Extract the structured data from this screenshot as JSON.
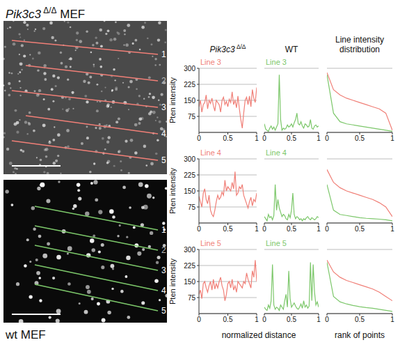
{
  "images": {
    "top": {
      "title": "Pik3c3 Δ/Δ MEF",
      "line_color": "#f07f77",
      "line_labels": [
        "1",
        "2",
        "3",
        "4",
        "5"
      ]
    },
    "bottom": {
      "title": "wt MEF",
      "line_color": "#7cc76a",
      "line_labels": [
        "1",
        "2",
        "3",
        "4",
        "5"
      ]
    }
  },
  "column_titles": [
    "Pik3c3 Δ/Δ",
    "WT",
    "Line intensity distribution"
  ],
  "xlabels": [
    "normalized distance",
    "rank of points"
  ],
  "chart_data": [
    {
      "type": "line",
      "title": "Line 3",
      "ylabel": "Pten intensity",
      "xlim": [
        0,
        1
      ],
      "xticks": [
        0,
        0.5,
        1
      ],
      "ylim": [
        0,
        300
      ],
      "yticks": [
        75,
        150,
        225,
        300
      ],
      "grid": true,
      "x": [
        0,
        0.025,
        0.05,
        0.075,
        0.1,
        0.125,
        0.15,
        0.175,
        0.2,
        0.225,
        0.25,
        0.275,
        0.3,
        0.325,
        0.35,
        0.375,
        0.4,
        0.425,
        0.45,
        0.475,
        0.5,
        0.525,
        0.55,
        0.575,
        0.6,
        0.625,
        0.65,
        0.675,
        0.7,
        0.725,
        0.75,
        0.775,
        0.8,
        0.825,
        0.85,
        0.875,
        0.9,
        0.925,
        0.95,
        0.975,
        1
      ],
      "series": [
        {
          "color": "#f07f77",
          "values": [
            120,
            150,
            95,
            130,
            140,
            175,
            110,
            150,
            135,
            160,
            125,
            100,
            150,
            140,
            130,
            95,
            150,
            165,
            130,
            145,
            120,
            155,
            140,
            190,
            130,
            150,
            115,
            170,
            110,
            60,
            20,
            90,
            150,
            165,
            130,
            170,
            120,
            200,
            160,
            140,
            210
          ]
        }
      ]
    },
    {
      "type": "line",
      "title": "Line 3",
      "xlim": [
        0,
        1
      ],
      "xticks": [
        0,
        0.5,
        1
      ],
      "ylim": [
        0,
        300
      ],
      "yticks": [
        75,
        150,
        225,
        300
      ],
      "grid": true,
      "tick_labels": "x",
      "x": [
        0,
        0.025,
        0.05,
        0.075,
        0.1,
        0.125,
        0.15,
        0.175,
        0.2,
        0.225,
        0.25,
        0.275,
        0.3,
        0.325,
        0.35,
        0.375,
        0.4,
        0.425,
        0.45,
        0.475,
        0.5,
        0.525,
        0.55,
        0.575,
        0.6,
        0.625,
        0.65,
        0.675,
        0.7,
        0.725,
        0.75,
        0.775,
        0.8,
        0.825,
        0.85,
        0.875,
        0.9,
        0.925,
        0.95,
        0.975,
        1
      ],
      "series": [
        {
          "color": "#7cc76a",
          "values": [
            40,
            15,
            10,
            5,
            20,
            30,
            15,
            25,
            10,
            25,
            40,
            270,
            60,
            10,
            20,
            15,
            20,
            35,
            25,
            30,
            40,
            25,
            45,
            60,
            90,
            40,
            35,
            50,
            30,
            20,
            40,
            35,
            25,
            30,
            60,
            20,
            15,
            30,
            35,
            25,
            30
          ]
        }
      ]
    },
    {
      "type": "line",
      "xlim": [
        0,
        1
      ],
      "xticks": [
        0,
        0.5,
        1
      ],
      "ylim": [
        0,
        300
      ],
      "yticks": [
        75,
        150,
        225,
        300
      ],
      "grid": true,
      "tick_labels": "x",
      "x": [
        0,
        0.1,
        0.2,
        0.3,
        0.4,
        0.5,
        0.6,
        0.7,
        0.8,
        0.9,
        1
      ],
      "series": [
        {
          "color": "#f07f77",
          "values": [
            280,
            200,
            175,
            160,
            150,
            140,
            130,
            120,
            110,
            90,
            10
          ]
        },
        {
          "color": "#7cc76a",
          "values": [
            270,
            90,
            50,
            40,
            35,
            30,
            25,
            20,
            15,
            10,
            5
          ]
        }
      ]
    },
    {
      "type": "line",
      "title": "Line 4",
      "ylabel": "Pten intensity",
      "xlim": [
        0,
        1
      ],
      "xticks": [
        0,
        0.5,
        1
      ],
      "ylim": [
        0,
        300
      ],
      "yticks": [
        75,
        150,
        225,
        300
      ],
      "grid": true,
      "x": [
        0,
        0.025,
        0.05,
        0.075,
        0.1,
        0.125,
        0.15,
        0.175,
        0.2,
        0.225,
        0.25,
        0.275,
        0.3,
        0.325,
        0.35,
        0.375,
        0.4,
        0.425,
        0.45,
        0.475,
        0.5,
        0.525,
        0.55,
        0.575,
        0.6,
        0.625,
        0.65,
        0.675,
        0.7,
        0.725,
        0.75,
        0.775,
        0.8,
        0.825,
        0.85,
        0.875,
        0.9,
        0.925,
        0.95,
        0.975,
        1
      ],
      "series": [
        {
          "color": "#f07f77",
          "values": [
            125,
            100,
            75,
            140,
            160,
            110,
            90,
            130,
            60,
            40,
            30,
            60,
            100,
            130,
            110,
            120,
            145,
            130,
            200,
            150,
            170,
            160,
            150,
            190,
            160,
            240,
            130,
            140,
            170,
            160,
            180,
            130,
            110,
            90,
            70,
            100,
            120,
            80,
            110,
            100,
            140
          ]
        }
      ]
    },
    {
      "type": "line",
      "title": "Line 4",
      "xlim": [
        0,
        1
      ],
      "xticks": [
        0,
        0.5,
        1
      ],
      "ylim": [
        0,
        300
      ],
      "yticks": [
        75,
        150,
        225,
        300
      ],
      "grid": true,
      "tick_labels": "x",
      "x": [
        0,
        0.025,
        0.05,
        0.075,
        0.1,
        0.125,
        0.15,
        0.175,
        0.2,
        0.225,
        0.25,
        0.275,
        0.3,
        0.325,
        0.35,
        0.375,
        0.4,
        0.425,
        0.45,
        0.475,
        0.5,
        0.525,
        0.55,
        0.575,
        0.6,
        0.625,
        0.65,
        0.675,
        0.7,
        0.725,
        0.75,
        0.775,
        0.8,
        0.825,
        0.85,
        0.875,
        0.9,
        0.925,
        0.95,
        0.975,
        1
      ],
      "series": [
        {
          "color": "#7cc76a",
          "values": [
            30,
            20,
            10,
            40,
            25,
            30,
            15,
            35,
            180,
            60,
            110,
            70,
            50,
            30,
            40,
            35,
            20,
            15,
            40,
            25,
            60,
            140,
            40,
            20,
            30,
            25,
            15,
            20,
            10,
            20,
            15,
            25,
            30,
            20,
            15,
            25,
            20,
            15,
            20,
            30,
            25
          ]
        }
      ]
    },
    {
      "type": "line",
      "xlim": [
        0,
        1
      ],
      "xticks": [
        0,
        0.5,
        1
      ],
      "ylim": [
        0,
        300
      ],
      "yticks": [
        75,
        150,
        225,
        300
      ],
      "grid": true,
      "tick_labels": "x",
      "x": [
        0,
        0.1,
        0.2,
        0.3,
        0.4,
        0.5,
        0.6,
        0.7,
        0.8,
        0.9,
        1
      ],
      "series": [
        {
          "color": "#f07f77",
          "values": [
            250,
            190,
            165,
            150,
            140,
            130,
            120,
            110,
            95,
            75,
            30
          ]
        },
        {
          "color": "#7cc76a",
          "values": [
            180,
            60,
            40,
            35,
            30,
            25,
            22,
            20,
            18,
            15,
            10
          ]
        }
      ]
    },
    {
      "type": "line",
      "title": "Line 5",
      "ylabel": "Pten intensity",
      "xlim": [
        0,
        1
      ],
      "xticks": [
        0,
        0.5,
        1
      ],
      "ylim": [
        0,
        300
      ],
      "yticks": [
        75,
        150,
        225,
        300
      ],
      "grid": true,
      "x": [
        0,
        0.025,
        0.05,
        0.075,
        0.1,
        0.125,
        0.15,
        0.175,
        0.2,
        0.225,
        0.25,
        0.275,
        0.3,
        0.325,
        0.35,
        0.375,
        0.4,
        0.425,
        0.45,
        0.475,
        0.5,
        0.525,
        0.55,
        0.575,
        0.6,
        0.625,
        0.65,
        0.675,
        0.7,
        0.725,
        0.75,
        0.775,
        0.8,
        0.825,
        0.85,
        0.875,
        0.9,
        0.925,
        0.95,
        0.975,
        1
      ],
      "series": [
        {
          "color": "#f07f77",
          "values": [
            90,
            110,
            70,
            140,
            150,
            120,
            100,
            130,
            150,
            110,
            160,
            115,
            140,
            120,
            150,
            170,
            130,
            110,
            60,
            90,
            140,
            150,
            120,
            160,
            110,
            130,
            100,
            150,
            140,
            130,
            120,
            150,
            140,
            190,
            160,
            140,
            120,
            200,
            170,
            250,
            150
          ]
        }
      ]
    },
    {
      "type": "line",
      "title": "Line 5",
      "xlim": [
        0,
        1
      ],
      "xticks": [
        0,
        0.5,
        1
      ],
      "ylim": [
        0,
        300
      ],
      "yticks": [
        75,
        150,
        225,
        300
      ],
      "grid": true,
      "tick_labels": "x",
      "x": [
        0,
        0.025,
        0.05,
        0.075,
        0.1,
        0.125,
        0.15,
        0.175,
        0.2,
        0.225,
        0.25,
        0.275,
        0.3,
        0.325,
        0.35,
        0.375,
        0.4,
        0.425,
        0.45,
        0.475,
        0.5,
        0.525,
        0.55,
        0.575,
        0.6,
        0.625,
        0.65,
        0.675,
        0.7,
        0.725,
        0.75,
        0.775,
        0.8,
        0.825,
        0.85,
        0.875,
        0.9,
        0.925,
        0.95,
        0.975,
        1
      ],
      "series": [
        {
          "color": "#7cc76a",
          "values": [
            30,
            20,
            15,
            40,
            25,
            60,
            230,
            40,
            20,
            30,
            25,
            15,
            40,
            30,
            20,
            60,
            90,
            30,
            200,
            70,
            30,
            40,
            50,
            35,
            25,
            20,
            30,
            45,
            25,
            60,
            30,
            40,
            25,
            35,
            240,
            60,
            230,
            100,
            40,
            55,
            30
          ]
        }
      ]
    },
    {
      "type": "line",
      "xlim": [
        0,
        1
      ],
      "xticks": [
        0,
        0.5,
        1
      ],
      "ylim": [
        0,
        300
      ],
      "yticks": [
        75,
        150,
        225,
        300
      ],
      "grid": true,
      "tick_labels": "x",
      "x": [
        0,
        0.1,
        0.2,
        0.3,
        0.4,
        0.5,
        0.6,
        0.7,
        0.8,
        0.9,
        1
      ],
      "series": [
        {
          "color": "#f07f77",
          "values": [
            250,
            195,
            170,
            155,
            145,
            135,
            125,
            115,
            100,
            80,
            60
          ]
        },
        {
          "color": "#7cc76a",
          "values": [
            240,
            80,
            55,
            45,
            38,
            32,
            28,
            25,
            20,
            15,
            10
          ]
        }
      ]
    }
  ]
}
